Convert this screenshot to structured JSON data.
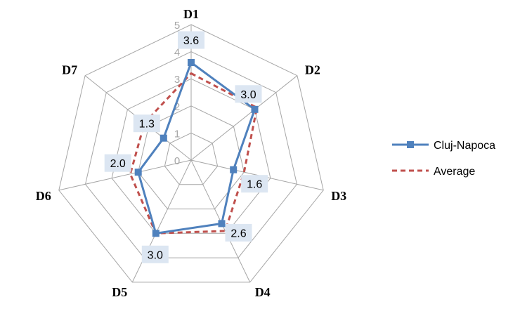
{
  "chart_data": {
    "type": "radar",
    "categories": [
      "D1",
      "D2",
      "D3",
      "D4",
      "D5",
      "D6",
      "D7"
    ],
    "rlim": [
      0,
      5
    ],
    "ticks": [
      0,
      1,
      2,
      3,
      4,
      5
    ],
    "tick_labels": [
      "0",
      "1",
      "2",
      "3",
      "4",
      "5"
    ],
    "series": [
      {
        "name": "Cluj-Napoca",
        "values": [
          3.6,
          3.0,
          1.6,
          2.6,
          3.0,
          2.0,
          1.3
        ],
        "data_labels": [
          "3.6",
          "3.0",
          "1.6",
          "2.6",
          "3.0",
          "2.0",
          "1.3"
        ],
        "color": "#4f81bd",
        "marker": "square",
        "line": "solid"
      },
      {
        "name": "Average",
        "values": [
          3.2,
          3.1,
          2.0,
          2.9,
          3.0,
          2.3,
          2.2
        ],
        "color": "#c0504d",
        "line": "dashed"
      }
    ],
    "legend": "right",
    "grid": true,
    "label_box_color": "#dce6f2"
  }
}
